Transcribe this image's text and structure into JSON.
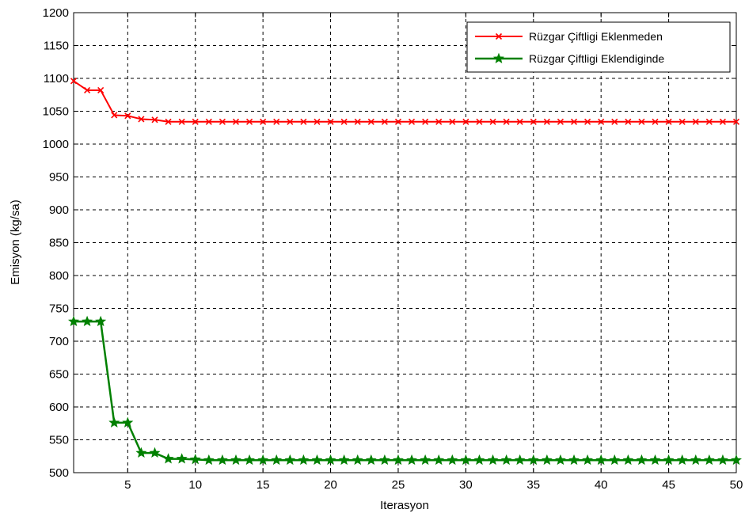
{
  "chart_data": {
    "type": "line",
    "title": "",
    "xlabel": "Iterasyon",
    "ylabel": "Emisyon (kg/sa)",
    "xlim": [
      1,
      50
    ],
    "ylim": [
      500,
      1200
    ],
    "grid": true,
    "legend_position": "top-right",
    "x_ticks": [
      5,
      10,
      15,
      20,
      25,
      30,
      35,
      40,
      45,
      50
    ],
    "y_ticks": [
      500,
      550,
      600,
      650,
      700,
      750,
      800,
      850,
      900,
      950,
      1000,
      1050,
      1100,
      1150,
      1200
    ],
    "x": [
      1,
      2,
      3,
      4,
      5,
      6,
      7,
      8,
      9,
      10,
      11,
      12,
      13,
      14,
      15,
      16,
      17,
      18,
      19,
      20,
      21,
      22,
      23,
      24,
      25,
      26,
      27,
      28,
      29,
      30,
      31,
      32,
      33,
      34,
      35,
      36,
      37,
      38,
      39,
      40,
      41,
      42,
      43,
      44,
      45,
      46,
      47,
      48,
      49,
      50
    ],
    "series": [
      {
        "name": "Rüzgar Çiftligi Eklenmeden",
        "color": "#ff0000",
        "marker": "x",
        "values": [
          1096,
          1082,
          1082,
          1044,
          1043,
          1038,
          1037,
          1034,
          1034,
          1034,
          1034,
          1034,
          1034,
          1034,
          1034,
          1034,
          1034,
          1034,
          1034,
          1034,
          1034,
          1034,
          1034,
          1034,
          1034,
          1034,
          1034,
          1034,
          1034,
          1034,
          1034,
          1034,
          1034,
          1034,
          1034,
          1034,
          1034,
          1034,
          1034,
          1034,
          1034,
          1034,
          1034,
          1034,
          1034,
          1034,
          1034,
          1034,
          1034,
          1034
        ]
      },
      {
        "name": "Rüzgar Çiftligi Eklendiginde",
        "color": "#008000",
        "marker": "star",
        "values": [
          730,
          730,
          730,
          576,
          576,
          530,
          530,
          521,
          521,
          520,
          519,
          519,
          519,
          519,
          519,
          519,
          519,
          519,
          519,
          519,
          519,
          519,
          519,
          519,
          519,
          519,
          519,
          519,
          519,
          519,
          519,
          519,
          519,
          519,
          519,
          519,
          519,
          519,
          519,
          519,
          519,
          519,
          519,
          519,
          519,
          519,
          519,
          519,
          519,
          519
        ]
      }
    ]
  }
}
